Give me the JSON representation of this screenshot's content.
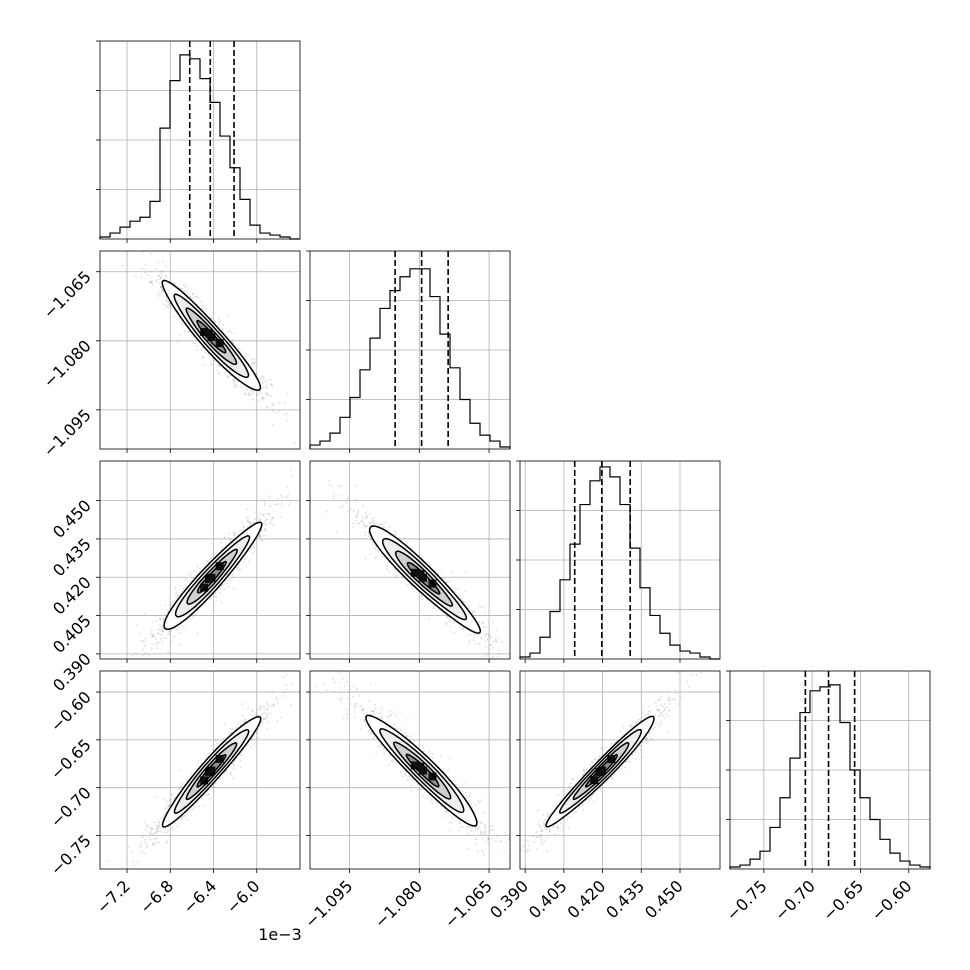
{
  "chart_data": {
    "type": "corner",
    "grid": true,
    "offset_label": "1e−3",
    "params": [
      {
        "range": [
          -7.45,
          -5.6
        ],
        "ticks": [
          -7.2,
          -6.8,
          -6.4,
          -6.0
        ],
        "tick_labels": [
          "−7.2",
          "−6.8",
          "−6.4",
          "−6.0"
        ],
        "mean": -6.42,
        "sd": 0.22,
        "quantiles": [
          -6.62,
          -6.43,
          -6.21
        ],
        "hist_counts": [
          0.01,
          0.03,
          0.06,
          0.09,
          0.11,
          0.19,
          0.56,
          0.8,
          0.93,
          0.91,
          0.81,
          0.69,
          0.52,
          0.36,
          0.2,
          0.07,
          0.03,
          0.02,
          0.01,
          0.0
        ]
      },
      {
        "range": [
          -1.1035,
          -1.0605
        ],
        "ticks": [
          -1.095,
          -1.08,
          -1.065
        ],
        "tick_labels": [
          "−1.095",
          "−1.080",
          "−1.065"
        ],
        "mean": -1.0792,
        "sd": 0.0058,
        "quantiles": [
          -1.0852,
          -1.0795,
          -1.0738
        ],
        "hist_counts": [
          0.02,
          0.04,
          0.08,
          0.16,
          0.26,
          0.4,
          0.56,
          0.71,
          0.8,
          0.87,
          0.91,
          0.91,
          0.77,
          0.58,
          0.41,
          0.25,
          0.13,
          0.07,
          0.04,
          0.01
        ]
      },
      {
        "range": [
          0.388,
          0.4655
        ],
        "ticks": [
          0.39,
          0.405,
          0.42,
          0.435,
          0.45
        ],
        "tick_labels": [
          "0.390",
          "0.405",
          "0.420",
          "0.435",
          "0.450"
        ],
        "mean": 0.4198,
        "sd": 0.0102,
        "quantiles": [
          0.4092,
          0.4197,
          0.4307
        ],
        "hist_counts": [
          0.01,
          0.03,
          0.11,
          0.24,
          0.4,
          0.58,
          0.78,
          0.9,
          0.97,
          0.92,
          0.78,
          0.56,
          0.36,
          0.22,
          0.13,
          0.07,
          0.04,
          0.03,
          0.01,
          0.0
        ]
      },
      {
        "range": [
          -0.785,
          -0.578
        ],
        "ticks": [
          -0.75,
          -0.7,
          -0.65,
          -0.6
        ],
        "tick_labels": [
          "−0.75",
          "−0.70",
          "−0.65",
          "−0.60"
        ],
        "mean": -0.682,
        "sd": 0.028,
        "quantiles": [
          -0.707,
          -0.683,
          -0.656
        ],
        "hist_counts": [
          0.01,
          0.02,
          0.05,
          0.09,
          0.21,
          0.36,
          0.56,
          0.79,
          0.9,
          0.92,
          0.93,
          0.74,
          0.5,
          0.36,
          0.25,
          0.15,
          0.08,
          0.04,
          0.02,
          0.01
        ]
      }
    ],
    "correlations": {
      "1-0": -0.95,
      "2-0": 0.95,
      "2-1": -0.95,
      "3-0": 0.96,
      "3-1": -0.95,
      "3-2": 0.97
    },
    "contour_levels_sigma": [
      0.5,
      1.0,
      1.5,
      2.0
    ]
  }
}
